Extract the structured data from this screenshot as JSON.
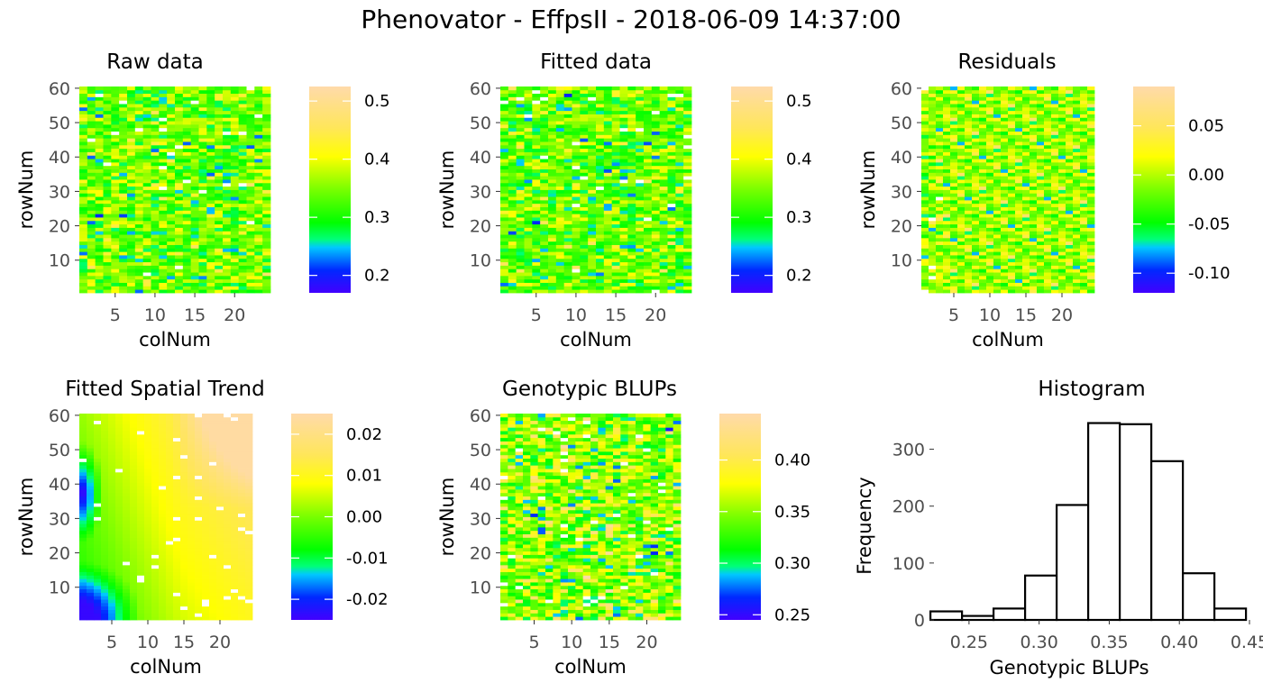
{
  "chart_data": {
    "title": "Phenovator - EffpsII - 2018-06-09 14:37:00",
    "panels": [
      {
        "id": "raw",
        "type": "heatmap",
        "title": "Raw data",
        "xlabel": "colNum",
        "ylabel": "rowNum",
        "xlim": [
          1,
          24
        ],
        "ylim": [
          1,
          60
        ],
        "xticks": [
          5,
          10,
          15,
          20
        ],
        "yticks": [
          10,
          20,
          30,
          40,
          50,
          60
        ],
        "legend": {
          "min": 0.17,
          "max": 0.525,
          "ticks": [
            0.2,
            0.3,
            0.4,
            0.5
          ],
          "labels": [
            "0.2",
            "0.3",
            "0.4",
            "0.5"
          ]
        }
      },
      {
        "id": "fitted",
        "type": "heatmap",
        "title": "Fitted data",
        "xlabel": "colNum",
        "ylabel": "rowNum",
        "xlim": [
          1,
          24
        ],
        "ylim": [
          1,
          60
        ],
        "xticks": [
          5,
          10,
          15,
          20
        ],
        "yticks": [
          10,
          20,
          30,
          40,
          50,
          60
        ],
        "legend": {
          "min": 0.17,
          "max": 0.525,
          "ticks": [
            0.2,
            0.3,
            0.4,
            0.5
          ],
          "labels": [
            "0.2",
            "0.3",
            "0.4",
            "0.5"
          ]
        }
      },
      {
        "id": "residuals",
        "type": "heatmap",
        "title": "Residuals",
        "xlabel": "colNum",
        "ylabel": "rowNum",
        "xlim": [
          1,
          24
        ],
        "ylim": [
          1,
          60
        ],
        "xticks": [
          5,
          10,
          15,
          20
        ],
        "yticks": [
          10,
          20,
          30,
          40,
          50,
          60
        ],
        "legend": {
          "min": -0.12,
          "max": 0.09,
          "ticks": [
            -0.1,
            -0.05,
            0.0,
            0.05
          ],
          "labels": [
            "-0.10",
            "-0.05",
            "0.00",
            "0.05"
          ]
        }
      },
      {
        "id": "trend",
        "type": "heatmap",
        "title": "Fitted Spatial Trend",
        "xlabel": "colNum",
        "ylabel": "rowNum",
        "xlim": [
          1,
          24
        ],
        "ylim": [
          1,
          60
        ],
        "xticks": [
          5,
          10,
          15,
          20
        ],
        "yticks": [
          10,
          20,
          30,
          40,
          50,
          60
        ],
        "legend": {
          "min": -0.025,
          "max": 0.025,
          "ticks": [
            -0.02,
            -0.01,
            0.0,
            0.01,
            0.02
          ],
          "labels": [
            "-0.02",
            "-0.01",
            "0.00",
            "0.01",
            "0.02"
          ]
        }
      },
      {
        "id": "blups",
        "type": "heatmap",
        "title": "Genotypic BLUPs",
        "xlabel": "colNum",
        "ylabel": "rowNum",
        "xlim": [
          1,
          24
        ],
        "ylim": [
          1,
          60
        ],
        "xticks": [
          5,
          10,
          15,
          20
        ],
        "yticks": [
          10,
          20,
          30,
          40,
          50,
          60
        ],
        "legend": {
          "min": 0.245,
          "max": 0.445,
          "ticks": [
            0.25,
            0.3,
            0.35,
            0.4
          ],
          "labels": [
            "0.25",
            "0.30",
            "0.35",
            "0.40"
          ]
        }
      },
      {
        "id": "histogram",
        "type": "bar",
        "title": "Histogram",
        "xlabel": "Genotypic BLUPs",
        "ylabel": "Frequency",
        "xlim": [
          0.225,
          0.45
        ],
        "ylim": [
          0,
          350
        ],
        "xticks": [
          0.25,
          0.3,
          0.35,
          0.4,
          0.45
        ],
        "xticklabels": [
          "0.25",
          "0.30",
          "0.35",
          "0.40",
          "0.45"
        ],
        "yticks": [
          0,
          100,
          200,
          300
        ],
        "bin_edges": [
          0.2225,
          0.245,
          0.2675,
          0.29,
          0.3125,
          0.335,
          0.3575,
          0.38,
          0.4025,
          0.425,
          0.4475
        ],
        "values": [
          15,
          7,
          20,
          78,
          202,
          346,
          344,
          279,
          82,
          20
        ]
      }
    ]
  }
}
